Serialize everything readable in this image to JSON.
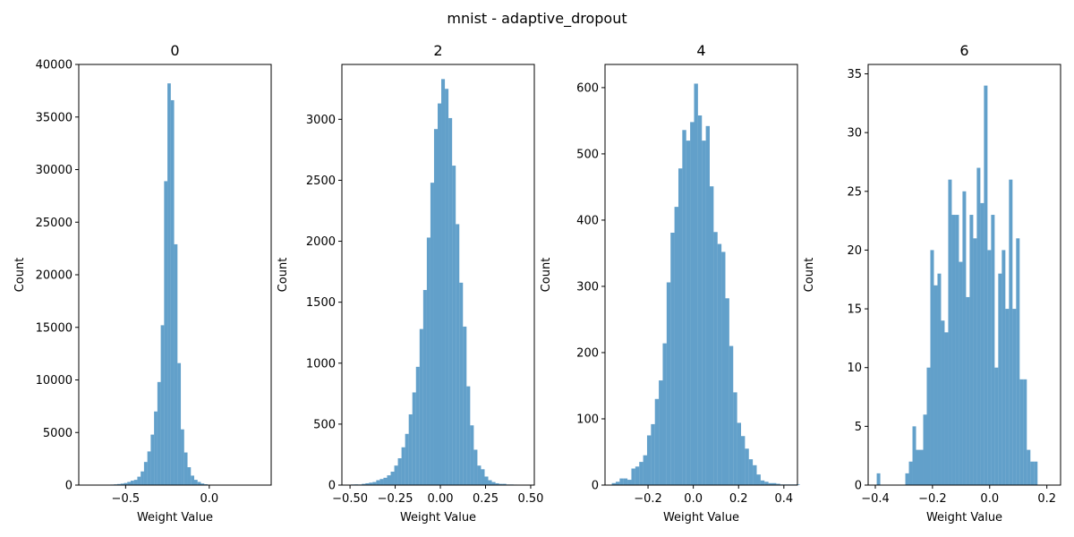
{
  "figure": {
    "suptitle": "mnist - adaptive_dropout",
    "bar_color": "#1f77b4",
    "bar_opacity": 0.7
  },
  "chart_data": [
    {
      "type": "bar",
      "title": "0",
      "xlabel": "Weight Value",
      "ylabel": "Count",
      "xlim": [
        -0.78,
        0.37
      ],
      "ylim": [
        0,
        40000
      ],
      "xticks": [
        -0.5,
        0.0
      ],
      "xtick_labels": [
        "−0.5",
        "0.0"
      ],
      "yticks": [
        0,
        5000,
        10000,
        15000,
        20000,
        25000,
        30000,
        35000,
        40000
      ],
      "ytick_labels": [
        "0",
        "5000",
        "10000",
        "15000",
        "20000",
        "25000",
        "30000",
        "35000",
        "40000"
      ],
      "bin_start": -0.73,
      "bin_width": 0.02,
      "values": [
        10,
        10,
        10,
        20,
        20,
        30,
        40,
        50,
        70,
        100,
        140,
        200,
        300,
        420,
        500,
        800,
        1300,
        2200,
        3200,
        4800,
        7000,
        9800,
        15200,
        28900,
        38200,
        36600,
        22900,
        11600,
        5300,
        3100,
        1700,
        900,
        500,
        300,
        150,
        80,
        40,
        20,
        10,
        5,
        3,
        2
      ]
    },
    {
      "type": "bar",
      "title": "2",
      "xlabel": "Weight Value",
      "ylabel": "Count",
      "xlim": [
        -0.545,
        0.52
      ],
      "ylim": [
        0,
        3450
      ],
      "xticks": [
        -0.5,
        -0.25,
        0.0,
        0.25,
        0.5
      ],
      "xtick_labels": [
        "−0.50",
        "−0.25",
        "0.00",
        "0.25",
        "0.50"
      ],
      "yticks": [
        0,
        500,
        1000,
        1500,
        2000,
        2500,
        3000
      ],
      "ytick_labels": [
        "0",
        "500",
        "1000",
        "1500",
        "2000",
        "2500",
        "3000"
      ],
      "bin_start": -0.495,
      "bin_width": 0.02,
      "values": [
        5,
        6,
        5,
        10,
        15,
        20,
        25,
        40,
        50,
        60,
        80,
        110,
        160,
        220,
        310,
        420,
        580,
        760,
        970,
        1280,
        1600,
        2030,
        2480,
        2920,
        3130,
        3330,
        3250,
        3010,
        2620,
        2140,
        1660,
        1300,
        810,
        490,
        290,
        160,
        130,
        70,
        40,
        25,
        15,
        10,
        10,
        5,
        5,
        4,
        2
      ]
    },
    {
      "type": "bar",
      "title": "4",
      "xlabel": "Weight Value",
      "ylabel": "Count",
      "xlim": [
        -0.39,
        0.46
      ],
      "ylim": [
        0,
        635
      ],
      "xticks": [
        -0.2,
        0.0,
        0.2,
        0.4
      ],
      "xtick_labels": [
        "−0.2",
        "0.0",
        "0.2",
        "0.4"
      ],
      "yticks": [
        0,
        100,
        200,
        300,
        400,
        500,
        600
      ],
      "ytick_labels": [
        "0",
        "100",
        "200",
        "300",
        "400",
        "500",
        "600"
      ],
      "bin_start": -0.36,
      "bin_width": 0.0173,
      "values": [
        3,
        5,
        10,
        10,
        8,
        25,
        28,
        35,
        45,
        75,
        92,
        130,
        158,
        214,
        306,
        381,
        420,
        478,
        536,
        520,
        548,
        606,
        558,
        520,
        542,
        451,
        382,
        364,
        352,
        282,
        210,
        140,
        94,
        74,
        55,
        39,
        30,
        16,
        7,
        5,
        3,
        3,
        2,
        1,
        1,
        1,
        1,
        1
      ]
    },
    {
      "type": "bar",
      "title": "6",
      "xlabel": "Weight Value",
      "ylabel": "Count",
      "xlim": [
        -0.425,
        0.248
      ],
      "ylim": [
        0,
        35.8
      ],
      "xticks": [
        -0.4,
        -0.2,
        0.0,
        0.2
      ],
      "xtick_labels": [
        "−0.4",
        "−0.2",
        "0.0",
        "0.2"
      ],
      "yticks": [
        0,
        5,
        10,
        15,
        20,
        25,
        30,
        35
      ],
      "ytick_labels": [
        "0",
        "5",
        "10",
        "15",
        "20",
        "25",
        "30",
        "35"
      ],
      "bin_start": -0.395,
      "bin_width": 0.0125,
      "values": [
        1,
        0,
        0,
        0,
        0,
        0,
        0,
        0,
        1,
        2,
        5,
        3,
        3,
        6,
        10,
        20,
        17,
        18,
        14,
        13,
        26,
        23,
        23,
        19,
        25,
        16,
        23,
        21,
        27,
        24,
        34,
        20,
        23,
        10,
        18,
        20,
        15,
        26,
        15,
        21,
        9,
        9,
        3,
        2,
        2
      ]
    }
  ]
}
